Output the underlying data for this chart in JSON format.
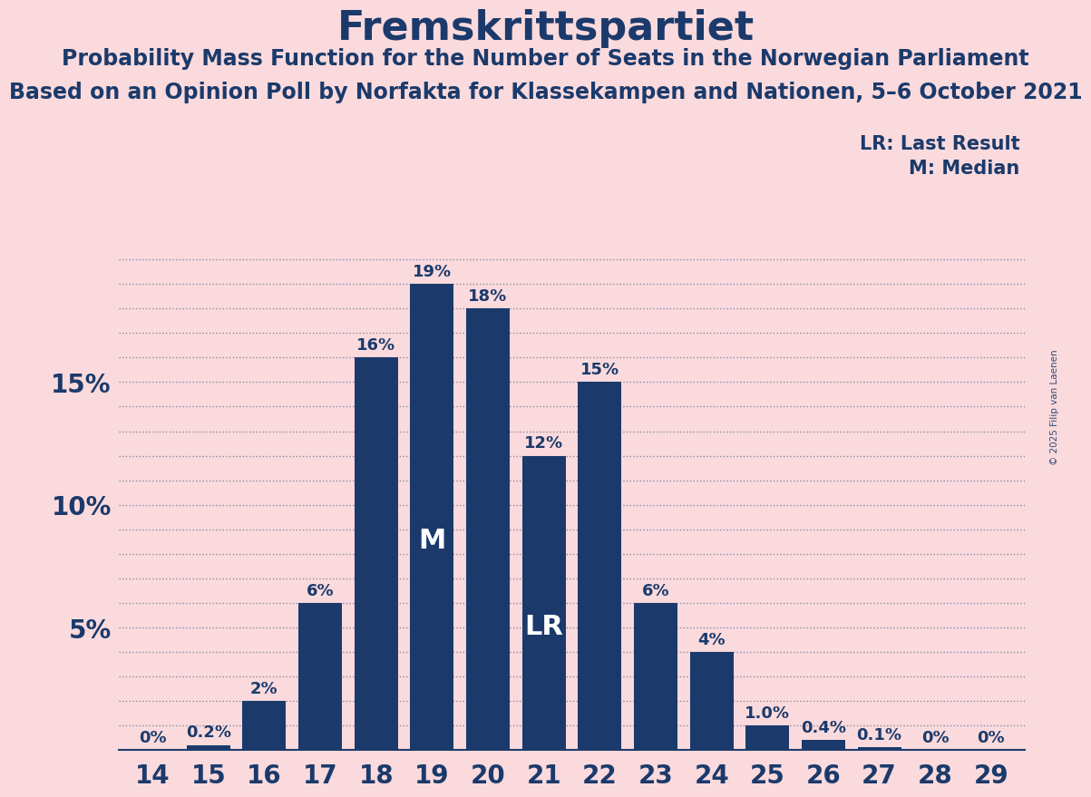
{
  "title": "Fremskrittspartiet",
  "subtitle1": "Probability Mass Function for the Number of Seats in the Norwegian Parliament",
  "subtitle2": "Based on an Opinion Poll by Norfakta for Klassekampen and Nationen, 5–6 October 2021",
  "copyright": "© 2025 Filip van Laenen",
  "legend_lr": "LR: Last Result",
  "legend_m": "M: Median",
  "background_color": "#FADADD",
  "bar_color": "#1B3A6B",
  "text_color": "#1B3A6B",
  "categories": [
    14,
    15,
    16,
    17,
    18,
    19,
    20,
    21,
    22,
    23,
    24,
    25,
    26,
    27,
    28,
    29
  ],
  "values": [
    0.0,
    0.2,
    2.0,
    6.0,
    16.0,
    19.0,
    18.0,
    12.0,
    15.0,
    6.0,
    4.0,
    1.0,
    0.4,
    0.1,
    0.0,
    0.0
  ],
  "labels": [
    "0%",
    "0.2%",
    "2%",
    "6%",
    "16%",
    "19%",
    "18%",
    "12%",
    "15%",
    "6%",
    "4%",
    "1.0%",
    "0.4%",
    "0.1%",
    "0%",
    "0%"
  ],
  "median_bar": 19,
  "lr_bar": 21,
  "ylim": [
    0,
    20.5
  ],
  "ytick_positions": [
    5,
    10,
    15
  ],
  "ytick_labels": [
    "5%",
    "10%",
    "15%"
  ],
  "minor_grid_positions": [
    1,
    2,
    3,
    4,
    5,
    6,
    7,
    8,
    9,
    10,
    11,
    12,
    13,
    14,
    15,
    16,
    17,
    18,
    19,
    20
  ],
  "label_fontsize": 13,
  "tick_fontsize": 20,
  "title_fontsize": 32,
  "subtitle1_fontsize": 17,
  "subtitle2_fontsize": 17,
  "legend_fontsize": 15
}
